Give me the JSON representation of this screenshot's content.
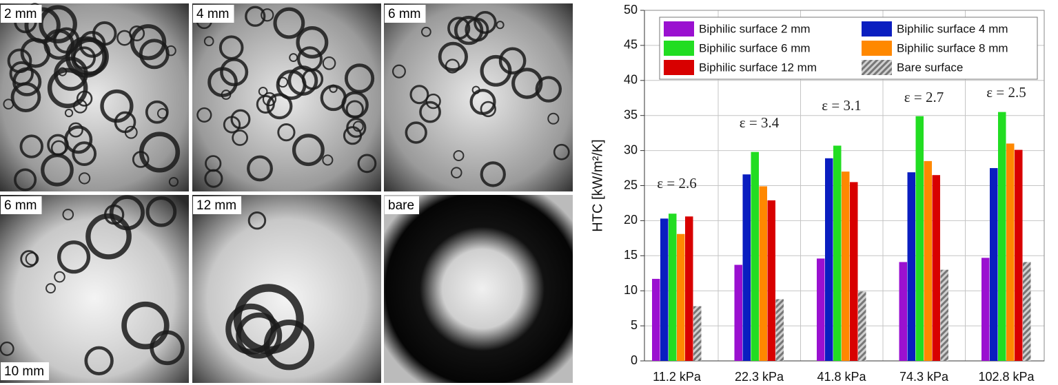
{
  "photo_panels": [
    {
      "labels": [
        "2 mm"
      ]
    },
    {
      "labels": [
        "4 mm"
      ]
    },
    {
      "labels": [
        "6 mm"
      ]
    },
    {
      "labels": [
        "6 mm",
        "10 mm"
      ]
    },
    {
      "labels": [
        "12 mm"
      ]
    },
    {
      "labels": [
        "bare"
      ]
    }
  ],
  "chart_data": {
    "type": "bar",
    "y_label": "HTC [kW/m²/K]",
    "categories": [
      "11.2 kPa",
      "22.3 kPa",
      "41.8 kPa",
      "74.3 kPa",
      "102.8 kPa"
    ],
    "series": [
      {
        "name": "Biphilic surface 2 mm",
        "color": "#9a10d0",
        "values": [
          11.7,
          13.7,
          14.6,
          14.1,
          14.7
        ]
      },
      {
        "name": "Biphilic surface 4 mm",
        "color": "#0a1ec0",
        "values": [
          20.3,
          26.6,
          28.9,
          26.9,
          27.5
        ]
      },
      {
        "name": "Biphilic surface 6 mm",
        "color": "#22dd22",
        "values": [
          21.0,
          29.8,
          30.7,
          34.9,
          35.5
        ]
      },
      {
        "name": "Biphilic surface 8 mm",
        "color": "#ff8800",
        "values": [
          18.1,
          24.9,
          27.0,
          28.5,
          31.0
        ]
      },
      {
        "name": "Biphilic surface 12 mm",
        "color": "#d80000",
        "values": [
          20.6,
          22.9,
          25.5,
          26.5,
          30.1
        ]
      },
      {
        "name": "Bare surface",
        "color": "#8a8a8a",
        "pattern": "hatch",
        "values": [
          7.8,
          8.8,
          9.9,
          13.0,
          14.1
        ]
      }
    ],
    "annotations": [
      "ε = 2.6",
      "ε = 3.4",
      "ε = 3.1",
      "ε = 2.7",
      "ε = 2.5"
    ],
    "ylim": [
      0,
      50
    ],
    "yticks": [
      0,
      5,
      10,
      15,
      20,
      25,
      30,
      35,
      40,
      45,
      50
    ],
    "grid": true
  }
}
